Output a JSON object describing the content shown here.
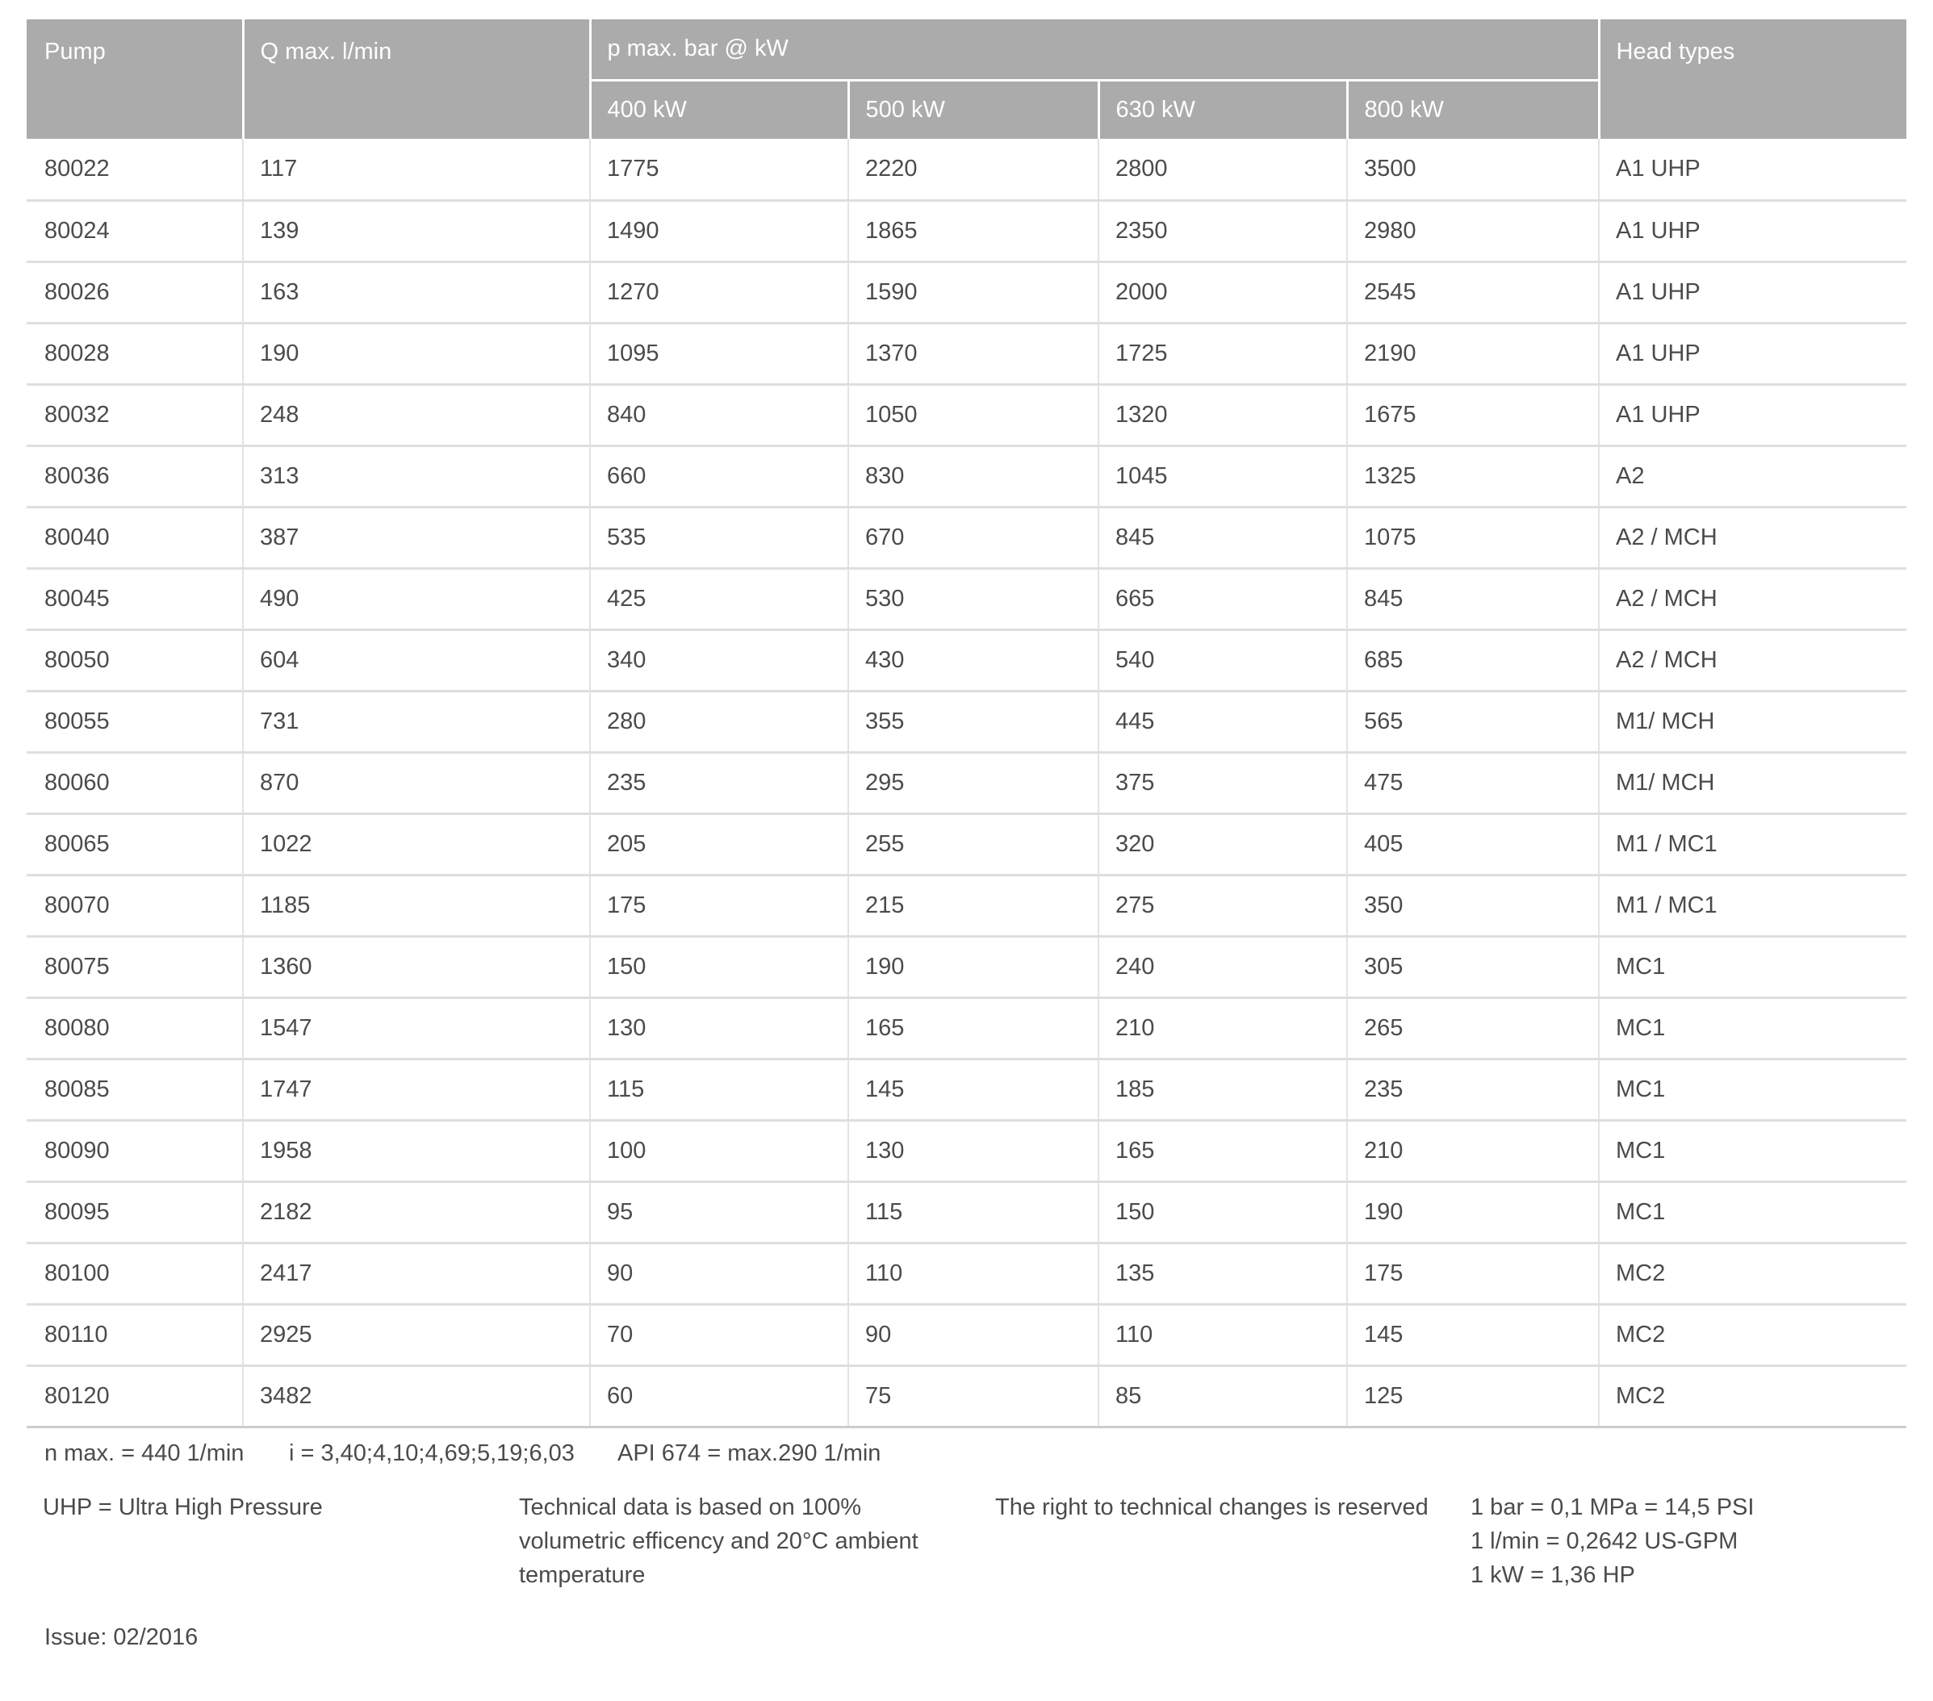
{
  "table": {
    "headers": {
      "pump": "Pump",
      "q_max": "Q max. l/min",
      "p_max_group": "p max. bar @ kW",
      "kw_columns": [
        "400 kW",
        "500 kW",
        "630 kW",
        "800 kW"
      ],
      "head_types": "Head types"
    },
    "rows": [
      {
        "pump": "80022",
        "q": "117",
        "kw400": "1775",
        "kw500": "2220",
        "kw630": "2800",
        "kw800": "3500",
        "head": "A1 UHP"
      },
      {
        "pump": "80024",
        "q": "139",
        "kw400": "1490",
        "kw500": "1865",
        "kw630": "2350",
        "kw800": "2980",
        "head": "A1 UHP"
      },
      {
        "pump": "80026",
        "q": "163",
        "kw400": "1270",
        "kw500": "1590",
        "kw630": "2000",
        "kw800": "2545",
        "head": "A1 UHP"
      },
      {
        "pump": "80028",
        "q": "190",
        "kw400": "1095",
        "kw500": "1370",
        "kw630": "1725",
        "kw800": "2190",
        "head": "A1 UHP"
      },
      {
        "pump": "80032",
        "q": "248",
        "kw400": "840",
        "kw500": "1050",
        "kw630": "1320",
        "kw800": "1675",
        "head": "A1 UHP"
      },
      {
        "pump": "80036",
        "q": "313",
        "kw400": "660",
        "kw500": "830",
        "kw630": "1045",
        "kw800": "1325",
        "head": "A2"
      },
      {
        "pump": "80040",
        "q": "387",
        "kw400": "535",
        "kw500": "670",
        "kw630": "845",
        "kw800": "1075",
        "head": "A2 / MCH"
      },
      {
        "pump": "80045",
        "q": "490",
        "kw400": "425",
        "kw500": "530",
        "kw630": "665",
        "kw800": "845",
        "head": "A2 / MCH"
      },
      {
        "pump": "80050",
        "q": "604",
        "kw400": "340",
        "kw500": "430",
        "kw630": "540",
        "kw800": "685",
        "head": "A2 / MCH"
      },
      {
        "pump": "80055",
        "q": "731",
        "kw400": "280",
        "kw500": "355",
        "kw630": "445",
        "kw800": "565",
        "head": "M1/ MCH"
      },
      {
        "pump": "80060",
        "q": "870",
        "kw400": "235",
        "kw500": "295",
        "kw630": "375",
        "kw800": "475",
        "head": "M1/ MCH"
      },
      {
        "pump": "80065",
        "q": "1022",
        "kw400": "205",
        "kw500": "255",
        "kw630": "320",
        "kw800": "405",
        "head": "M1 / MC1"
      },
      {
        "pump": "80070",
        "q": "1185",
        "kw400": "175",
        "kw500": "215",
        "kw630": "275",
        "kw800": "350",
        "head": "M1 / MC1"
      },
      {
        "pump": "80075",
        "q": "1360",
        "kw400": "150",
        "kw500": "190",
        "kw630": "240",
        "kw800": "305",
        "head": "MC1"
      },
      {
        "pump": "80080",
        "q": "1547",
        "kw400": "130",
        "kw500": "165",
        "kw630": "210",
        "kw800": "265",
        "head": "MC1"
      },
      {
        "pump": "80085",
        "q": "1747",
        "kw400": "115",
        "kw500": "145",
        "kw630": "185",
        "kw800": "235",
        "head": "MC1"
      },
      {
        "pump": "80090",
        "q": "1958",
        "kw400": "100",
        "kw500": "130",
        "kw630": "165",
        "kw800": "210",
        "head": "MC1"
      },
      {
        "pump": "80095",
        "q": "2182",
        "kw400": "95",
        "kw500": "115",
        "kw630": "150",
        "kw800": "190",
        "head": "MC1"
      },
      {
        "pump": "80100",
        "q": "2417",
        "kw400": "90",
        "kw500": "110",
        "kw630": "135",
        "kw800": "175",
        "head": "MC2"
      },
      {
        "pump": "80110",
        "q": "2925",
        "kw400": "70",
        "kw500": "90",
        "kw630": "110",
        "kw800": "145",
        "head": "MC2"
      },
      {
        "pump": "80120",
        "q": "3482",
        "kw400": "60",
        "kw500": "75",
        "kw630": "85",
        "kw800": "125",
        "head": "MC2"
      }
    ]
  },
  "footnotes": {
    "n_max": "n max. = 440 1/min",
    "gear_ratios": "i = 3,40;4,10;4,69;5,19;6,03",
    "api": "API 674 = max.290 1/min"
  },
  "footer": {
    "uhp": "UHP = Ultra High Pressure",
    "tech_lines": [
      "Technical data is based on 100%",
      "volumetric efficency and 20°C ambient",
      "temperature"
    ],
    "rights": "The right to technical changes is reserved",
    "conversion_lines": [
      "1 bar = 0,1 MPa = 14,5 PSI",
      "1 l/min = 0,2642 US-GPM",
      "1 kW = 1,36 HP"
    ]
  },
  "issue": "Issue: 02/2016",
  "colors": {
    "header_bg": "#ababab",
    "header_text": "#ffffff",
    "body_text": "#4b4b4b",
    "row_divider": "#dedede",
    "column_divider": "#e3e3e3",
    "table_bottom": "#cccccc"
  }
}
